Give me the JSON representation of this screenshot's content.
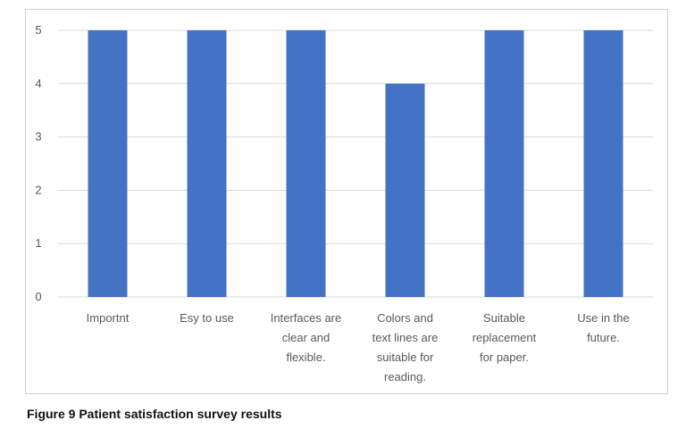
{
  "caption": "Figure 9 Patient satisfaction  survey results",
  "chart_data": {
    "type": "bar",
    "categories": [
      [
        "Importnt"
      ],
      [
        "Esy to use"
      ],
      [
        "Interfaces are",
        "clear and",
        "flexible."
      ],
      [
        "Colors and",
        "text lines are",
        "suitable for",
        "reading."
      ],
      [
        "Suitable",
        "replacement",
        "for paper."
      ],
      [
        "Use in the",
        "future."
      ]
    ],
    "values": [
      5,
      5,
      5,
      4,
      5,
      5
    ],
    "yticks": [
      0,
      1,
      2,
      3,
      4,
      5
    ],
    "ylim": [
      0,
      5
    ],
    "bar_color": "#4472c4",
    "grid": true,
    "gridline_color": "#d9d9d9",
    "legend": "none"
  }
}
